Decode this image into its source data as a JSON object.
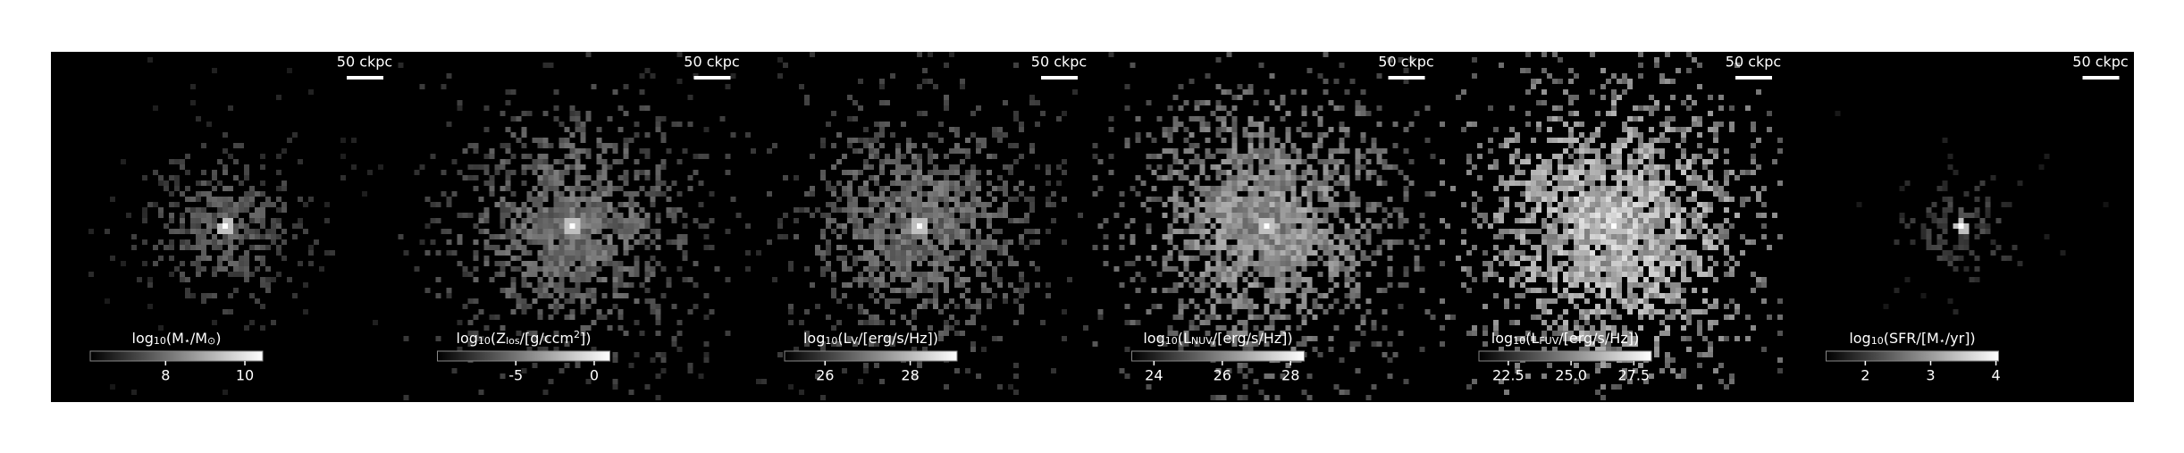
{
  "chart_data": [
    {
      "type": "image",
      "scalebar": "50 ckpc",
      "colormap": "gray",
      "colorbar_label": [
        {
          "text": "log"
        },
        {
          "text": "10",
          "style": "sub"
        },
        {
          "text": "(M"
        },
        {
          "text": "⋆",
          "style": "sub"
        },
        {
          "text": "/M"
        },
        {
          "text": "⊙",
          "style": "sub"
        },
        {
          "text": ")"
        }
      ],
      "clim": [
        6.1,
        10.45
      ],
      "cticks": [
        8,
        10
      ]
    },
    {
      "type": "image",
      "scalebar": "50 ckpc",
      "colormap": "gray",
      "colorbar_label": [
        {
          "text": "log"
        },
        {
          "text": "10",
          "style": "sub"
        },
        {
          "text": "(Z"
        },
        {
          "text": "los",
          "style": "sub"
        },
        {
          "text": "/[g/ccm"
        },
        {
          "text": "2",
          "style": "sup"
        },
        {
          "text": "])"
        }
      ],
      "clim": [
        -10,
        1
      ],
      "cticks": [
        -5,
        0
      ]
    },
    {
      "type": "image",
      "scalebar": "50 ckpc",
      "colormap": "gray",
      "colorbar_label": [
        {
          "text": "log"
        },
        {
          "text": "10",
          "style": "sub"
        },
        {
          "text": "(L"
        },
        {
          "text": "V",
          "style": "sub"
        },
        {
          "text": "/[erg/s/Hz])"
        }
      ],
      "clim": [
        25.05,
        29.1
      ],
      "cticks": [
        26,
        28
      ]
    },
    {
      "type": "image",
      "scalebar": "50 ckpc",
      "colormap": "gray",
      "colorbar_label": [
        {
          "text": "log"
        },
        {
          "text": "10",
          "style": "sub"
        },
        {
          "text": "(L"
        },
        {
          "text": "NUV",
          "style": "sub"
        },
        {
          "text": "/[erg/s/Hz])"
        }
      ],
      "clim": [
        23.35,
        28.4
      ],
      "cticks": [
        24,
        26,
        28
      ]
    },
    {
      "type": "image",
      "scalebar": "50 ckpc",
      "colormap": "gray",
      "colorbar_label": [
        {
          "text": "log"
        },
        {
          "text": "10",
          "style": "sub"
        },
        {
          "text": "(L"
        },
        {
          "text": "FUV",
          "style": "sub"
        },
        {
          "text": "/[erg/s/Hz])"
        }
      ],
      "clim": [
        21.33,
        28.2
      ],
      "cticks": [
        {
          "value": 22.5,
          "label": "22.5"
        },
        {
          "value": 25,
          "label": "25.0"
        },
        {
          "value": 27.5,
          "label": "27.5"
        }
      ]
    },
    {
      "type": "image",
      "scalebar": "50 ckpc",
      "colormap": "gray",
      "colorbar_label": [
        {
          "text": "log"
        },
        {
          "text": "10",
          "style": "sub"
        },
        {
          "text": "(SFR/[M"
        },
        {
          "text": "⋆",
          "style": "sub"
        },
        {
          "text": "/yr])"
        }
      ],
      "clim": [
        1.4,
        4.04
      ],
      "cticks": [
        2,
        3,
        4
      ]
    }
  ]
}
